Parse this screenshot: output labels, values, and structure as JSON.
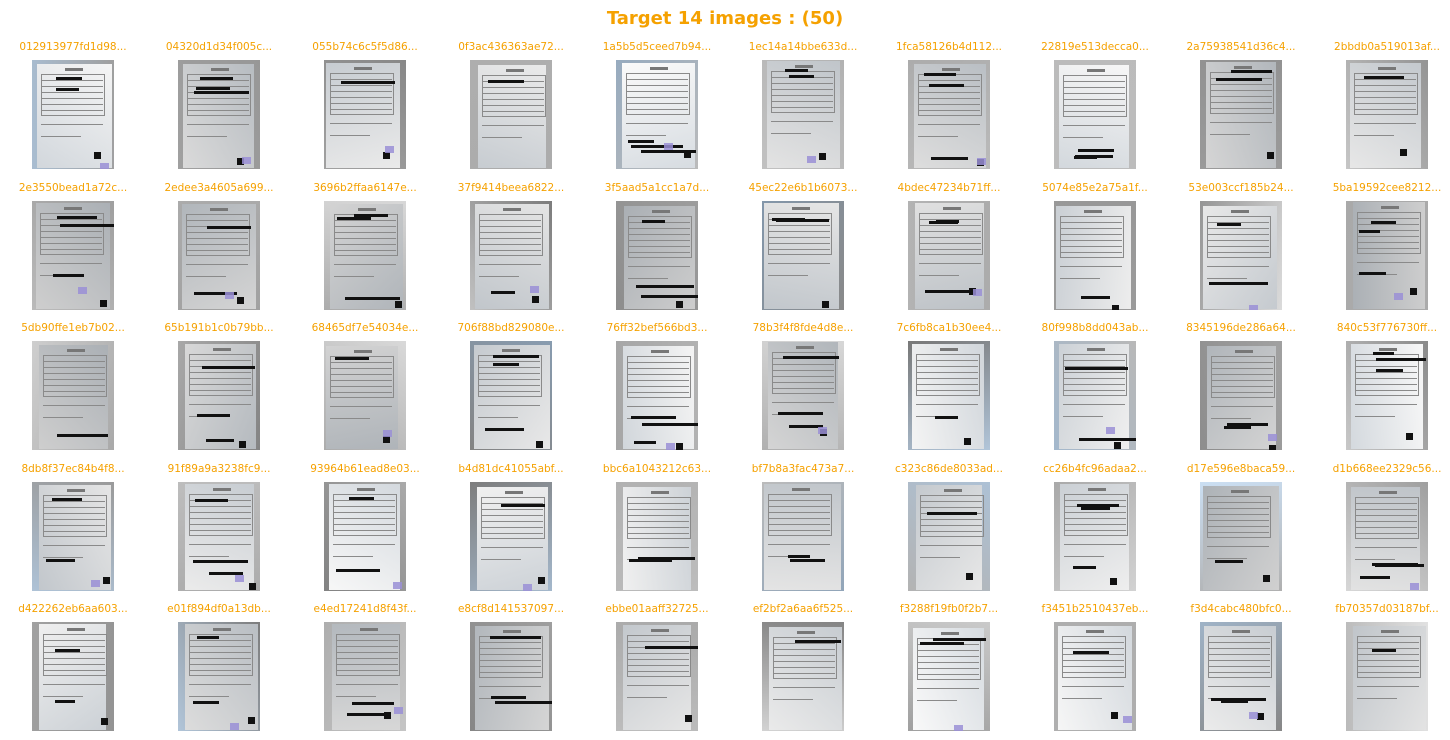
{
  "title": "Target 14 images : (50)",
  "colors": {
    "accent": "#f5a100"
  },
  "images": [
    {
      "caption": "012913977fd1d98...",
      "icon": "scanned-document-thumbnail"
    },
    {
      "caption": "04320d1d34f005c...",
      "icon": "scanned-document-thumbnail"
    },
    {
      "caption": "055b74c6c5f5d86...",
      "icon": "scanned-document-thumbnail"
    },
    {
      "caption": "0f3ac436363ae72...",
      "icon": "scanned-document-thumbnail"
    },
    {
      "caption": "1a5b5d5ceed7b94...",
      "icon": "scanned-document-thumbnail"
    },
    {
      "caption": "1ec14a14bbe633d...",
      "icon": "scanned-document-thumbnail"
    },
    {
      "caption": "1fca58126b4d112...",
      "icon": "scanned-document-thumbnail"
    },
    {
      "caption": "22819e513decca0...",
      "icon": "scanned-document-thumbnail"
    },
    {
      "caption": "2a75938541d36c4...",
      "icon": "scanned-document-thumbnail"
    },
    {
      "caption": "2bbdb0a519013af...",
      "icon": "scanned-document-thumbnail"
    },
    {
      "caption": "2e3550bead1a72c...",
      "icon": "scanned-document-thumbnail"
    },
    {
      "caption": "2edee3a4605a699...",
      "icon": "scanned-document-thumbnail"
    },
    {
      "caption": "3696b2ffaa6147e...",
      "icon": "scanned-document-thumbnail"
    },
    {
      "caption": "37f9414beea6822...",
      "icon": "scanned-document-thumbnail"
    },
    {
      "caption": "3f5aad5a1cc1a7d...",
      "icon": "scanned-document-thumbnail"
    },
    {
      "caption": "45ec22e6b1b6073...",
      "icon": "scanned-document-thumbnail"
    },
    {
      "caption": "4bdec47234b71ff...",
      "icon": "scanned-document-thumbnail"
    },
    {
      "caption": "5074e85e2a75a1f...",
      "icon": "scanned-document-thumbnail"
    },
    {
      "caption": "53e003ccf185b24...",
      "icon": "scanned-document-thumbnail"
    },
    {
      "caption": "5ba19592cee8212...",
      "icon": "scanned-document-thumbnail"
    },
    {
      "caption": "5db90ffe1eb7b02...",
      "icon": "scanned-document-thumbnail"
    },
    {
      "caption": "65b191b1c0b79bb...",
      "icon": "scanned-document-thumbnail"
    },
    {
      "caption": "68465df7e54034e...",
      "icon": "scanned-document-thumbnail"
    },
    {
      "caption": "706f88bd829080e...",
      "icon": "scanned-document-thumbnail"
    },
    {
      "caption": "76ff32bef566bd3...",
      "icon": "scanned-document-thumbnail"
    },
    {
      "caption": "78b3f4f8fde4d8e...",
      "icon": "scanned-document-thumbnail"
    },
    {
      "caption": "7c6fb8ca1b30ee4...",
      "icon": "scanned-document-thumbnail"
    },
    {
      "caption": "80f998b8dd043ab...",
      "icon": "scanned-document-thumbnail"
    },
    {
      "caption": "8345196de286a64...",
      "icon": "scanned-document-thumbnail"
    },
    {
      "caption": "840c53f776730ff...",
      "icon": "scanned-document-thumbnail"
    },
    {
      "caption": "8db8f37ec84b4f8...",
      "icon": "scanned-document-thumbnail"
    },
    {
      "caption": "91f89a9a3238fc9...",
      "icon": "scanned-document-thumbnail"
    },
    {
      "caption": "93964b61ead8e03...",
      "icon": "scanned-document-thumbnail"
    },
    {
      "caption": "b4d81dc41055abf...",
      "icon": "scanned-document-thumbnail"
    },
    {
      "caption": "bbc6a1043212c63...",
      "icon": "scanned-document-thumbnail"
    },
    {
      "caption": "bf7b8a3fac473a7...",
      "icon": "scanned-document-thumbnail"
    },
    {
      "caption": "c323c86de8033ad...",
      "icon": "scanned-document-thumbnail"
    },
    {
      "caption": "cc26b4fc96adaa2...",
      "icon": "scanned-document-thumbnail"
    },
    {
      "caption": "d17e596e8baca59...",
      "icon": "scanned-document-thumbnail"
    },
    {
      "caption": "d1b668ee2329c56...",
      "icon": "scanned-document-thumbnail"
    },
    {
      "caption": "d422262eb6aa603...",
      "icon": "scanned-document-thumbnail"
    },
    {
      "caption": "e01f894df0a13db...",
      "icon": "scanned-document-thumbnail"
    },
    {
      "caption": "e4ed17241d8f43f...",
      "icon": "scanned-document-thumbnail"
    },
    {
      "caption": "e8cf8d141537097...",
      "icon": "scanned-document-thumbnail"
    },
    {
      "caption": "ebbe01aaff32725...",
      "icon": "scanned-document-thumbnail"
    },
    {
      "caption": "ef2bf2a6aa6f525...",
      "icon": "scanned-document-thumbnail"
    },
    {
      "caption": "f3288f19fb0f2b7...",
      "icon": "scanned-document-thumbnail"
    },
    {
      "caption": "f3451b2510437eb...",
      "icon": "scanned-document-thumbnail"
    },
    {
      "caption": "f3d4cabc480bfc0...",
      "icon": "scanned-document-thumbnail"
    },
    {
      "caption": "fb70357d03187bf...",
      "icon": "scanned-document-thumbnail"
    }
  ]
}
